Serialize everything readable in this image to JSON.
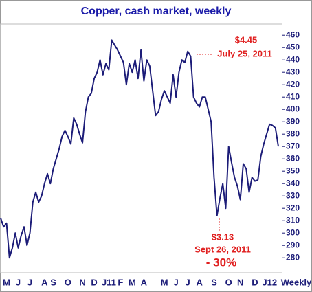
{
  "chart_data": {
    "type": "line",
    "title": "Copper, cash market, weekly",
    "x_label": "Weekly",
    "categories": [
      null,
      null,
      "M",
      null,
      null,
      null,
      "J",
      null,
      null,
      null,
      "J",
      null,
      null,
      null,
      null,
      "A",
      null,
      null,
      "S",
      null,
      null,
      null,
      null,
      "O",
      null,
      null,
      null,
      null,
      "N",
      null,
      null,
      null,
      "D",
      null,
      null,
      null,
      null,
      "J11",
      null,
      null,
      null,
      "F",
      null,
      null,
      null,
      "M",
      null,
      null,
      null,
      "A",
      null,
      null,
      null,
      null,
      null,
      null,
      "M",
      null,
      null,
      null,
      "J",
      null,
      null,
      null,
      "J",
      null,
      null,
      null,
      "A",
      null,
      null,
      null,
      null,
      "S",
      null,
      null,
      null,
      null,
      "O",
      null,
      null,
      null,
      "N",
      null,
      null,
      null,
      null,
      "D",
      null,
      null,
      null,
      null,
      "J12",
      null,
      null,
      null
    ],
    "series": [
      {
        "name": "Copper",
        "color": "#1c1c78",
        "values": [
          312,
          305,
          308,
          280,
          288,
          300,
          288,
          298,
          305,
          290,
          300,
          325,
          333,
          325,
          330,
          340,
          348,
          340,
          352,
          360,
          368,
          378,
          383,
          378,
          372,
          393,
          388,
          380,
          373,
          398,
          410,
          413,
          425,
          430,
          440,
          428,
          437,
          432,
          456,
          452,
          448,
          443,
          438,
          420,
          437,
          430,
          440,
          425,
          448,
          423,
          440,
          435,
          415,
          395,
          398,
          408,
          415,
          410,
          405,
          428,
          410,
          430,
          440,
          438,
          447,
          443,
          410,
          405,
          402,
          410,
          410,
          400,
          390,
          345,
          314,
          328,
          340,
          320,
          370,
          357,
          345,
          338,
          327,
          356,
          352,
          333,
          345,
          342,
          343,
          362,
          372,
          380,
          388,
          387,
          385,
          370
        ]
      }
    ],
    "ylim": [
      269,
      469
    ],
    "yticks": [
      280,
      290,
      300,
      310,
      320,
      330,
      340,
      350,
      360,
      370,
      380,
      390,
      400,
      410,
      420,
      430,
      440,
      450,
      460
    ],
    "annotations": [
      {
        "text": "$4.45"
      },
      {
        "text": "July 25, 2011"
      },
      {
        "text": "$3.13"
      },
      {
        "text": "Sept 26, 2011"
      },
      {
        "text": "- 30%"
      }
    ]
  }
}
